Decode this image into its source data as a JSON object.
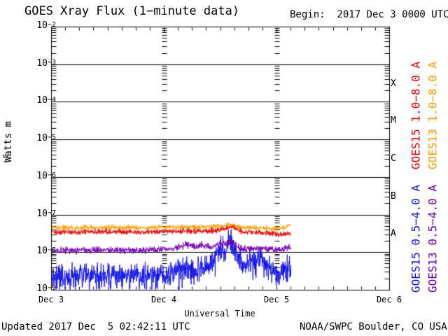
{
  "header": {
    "title": "GOES Xray Flux (1−minute data)",
    "begin": "Begin:  2017 Dec 3 0000 UTC"
  },
  "footer": {
    "updated": "Updated 2017 Dec  5 02:42:11 UTC",
    "credit": "NOAA/SWPC Boulder, CO USA"
  },
  "colors": {
    "background": "#ffffff",
    "axis": "#000000",
    "goes15_long": "#ef0000",
    "goes13_long": "#ffa000",
    "goes15_short": "#1414e6",
    "goes13_short": "#7800b4"
  },
  "chart_data": {
    "type": "line",
    "title": "GOES Xray Flux (1-minute data)",
    "xlabel": "Universal Time",
    "ylabel_base": "Watts m",
    "ylabel_sup": "−2",
    "x_ticks": [
      "Dec 3",
      "Dec 4",
      "Dec 5",
      "Dec 6"
    ],
    "x_range_days": 3,
    "x_minor_tick_hours": 3,
    "y_tick_exponents": [
      "−2",
      "−3",
      "−4",
      "−5",
      "−6",
      "−7",
      "−8",
      "−9"
    ],
    "ylim": [
      1e-09,
      0.01
    ],
    "yscale": "log",
    "grid": "solid horizontal line each decade; dashed vertical tick columns at interior day boundaries",
    "legend_position": "right, rotated",
    "flare_classes": [
      "X",
      "M",
      "C",
      "B",
      "A"
    ],
    "series": [
      {
        "name": "goes15-short",
        "label": "GOES15 0.5−4.0 A",
        "color": "#1414e6",
        "noise_decades": 0.16,
        "spiky": true,
        "points": [
          [
            0,
            2.4e-09
          ],
          [
            4,
            2.2e-09
          ],
          [
            8,
            2.5e-09
          ],
          [
            12,
            2.3e-09
          ],
          [
            16,
            2.5e-09
          ],
          [
            20,
            2.6e-09
          ],
          [
            24,
            2.6e-09
          ],
          [
            26,
            3e-09
          ],
          [
            27,
            3.6e-09
          ],
          [
            28,
            4.2e-09
          ],
          [
            29,
            3.4e-09
          ],
          [
            30,
            3e-09
          ],
          [
            31,
            3.3e-09
          ],
          [
            32,
            4.6e-09
          ],
          [
            33,
            3.8e-09
          ],
          [
            34,
            5.5e-09
          ],
          [
            35,
            9e-09
          ],
          [
            36,
            1.3e-08
          ],
          [
            37,
            1e-08
          ],
          [
            38,
            1.9e-08
          ],
          [
            39,
            1.3e-08
          ],
          [
            40,
            6e-09
          ],
          [
            41,
            4.5e-09
          ],
          [
            42,
            5.5e-09
          ],
          [
            43,
            5e-09
          ],
          [
            44,
            7e-09
          ],
          [
            45,
            6.5e-09
          ],
          [
            46,
            4.5e-09
          ],
          [
            47,
            3e-09
          ],
          [
            48,
            2.6e-09
          ],
          [
            49,
            2.9e-09
          ],
          [
            50,
            3.1e-09
          ],
          [
            51,
            3.3e-09
          ]
        ]
      },
      {
        "name": "goes13-short",
        "label": "GOES13 0.5−4.0 A",
        "color": "#7800b4",
        "noise_decades": 0.042,
        "spiky": false,
        "points": [
          [
            0,
            1.15e-08
          ],
          [
            6,
            1.15e-08
          ],
          [
            12,
            1.2e-08
          ],
          [
            18,
            1.15e-08
          ],
          [
            24,
            1.2e-08
          ],
          [
            26,
            1.25e-08
          ],
          [
            27,
            1.45e-08
          ],
          [
            28,
            1.55e-08
          ],
          [
            29,
            1.65e-08
          ],
          [
            30,
            1.5e-08
          ],
          [
            31,
            1.35e-08
          ],
          [
            32,
            1.6e-08
          ],
          [
            33,
            1.45e-08
          ],
          [
            34,
            1.35e-08
          ],
          [
            35,
            1.55e-08
          ],
          [
            36,
            1.8e-08
          ],
          [
            37,
            1.65e-08
          ],
          [
            38,
            1.9e-08
          ],
          [
            39,
            1.7e-08
          ],
          [
            40,
            1.35e-08
          ],
          [
            41,
            1.25e-08
          ],
          [
            43,
            1.25e-08
          ],
          [
            45,
            1.3e-08
          ],
          [
            47,
            1.2e-08
          ],
          [
            49,
            1.2e-08
          ],
          [
            50,
            1.25e-08
          ],
          [
            51,
            1.35e-08
          ]
        ]
      },
      {
        "name": "goes13-long",
        "label": "GOES13 1.0−8.0 A",
        "color": "#ffa000",
        "noise_decades": 0.032,
        "spiky": false,
        "points": [
          [
            0,
            4.6e-08
          ],
          [
            6,
            4.6e-08
          ],
          [
            12,
            4.7e-08
          ],
          [
            18,
            4.6e-08
          ],
          [
            24,
            4.7e-08
          ],
          [
            30,
            4.8e-08
          ],
          [
            35,
            4.9e-08
          ],
          [
            37,
            5.1e-08
          ],
          [
            38,
            5.4e-08
          ],
          [
            39,
            5e-08
          ],
          [
            41,
            4.7e-08
          ],
          [
            44,
            4.5e-08
          ],
          [
            47,
            4.4e-08
          ],
          [
            49,
            4.4e-08
          ],
          [
            50,
            4.8e-08
          ],
          [
            51,
            5.3e-08
          ]
        ]
      },
      {
        "name": "goes15-long",
        "label": "GOES15 1.0−8.0 A",
        "color": "#ef0000",
        "noise_decades": 0.035,
        "spiky": false,
        "points": [
          [
            0,
            3.5e-08
          ],
          [
            6,
            3.5e-08
          ],
          [
            12,
            3.6e-08
          ],
          [
            18,
            3.5e-08
          ],
          [
            24,
            3.6e-08
          ],
          [
            28,
            3.7e-08
          ],
          [
            32,
            3.7e-08
          ],
          [
            35,
            3.8e-08
          ],
          [
            36,
            4e-08
          ],
          [
            37,
            4.4e-08
          ],
          [
            38,
            5e-08
          ],
          [
            39,
            4.5e-08
          ],
          [
            40,
            3.9e-08
          ],
          [
            41,
            3.6e-08
          ],
          [
            43,
            3.4e-08
          ],
          [
            45,
            3.3e-08
          ],
          [
            47,
            3.2e-08
          ],
          [
            49,
            3e-08
          ],
          [
            51,
            3e-08
          ]
        ]
      }
    ]
  }
}
